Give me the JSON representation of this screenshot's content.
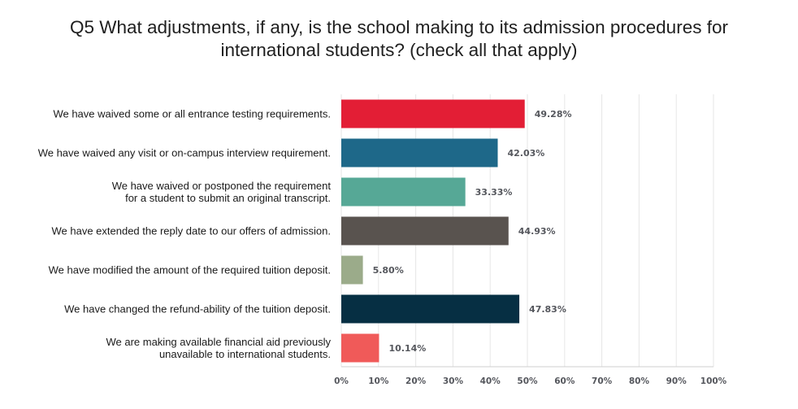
{
  "chart_data": {
    "type": "bar",
    "orientation": "horizontal",
    "title": [
      "Q5 What adjustments, if any, is the school making to its admission procedures for",
      "international students? (check all that apply)"
    ],
    "categories": [
      [
        "We have waived some or all entrance testing requirements."
      ],
      [
        "We have waived any visit or on-campus interview requirement."
      ],
      [
        "We have waived or postponed the requirement",
        "for a student to submit an original transcript."
      ],
      [
        "We have extended the reply date to our offers of admission."
      ],
      [
        "We have modified the amount of the required tuition deposit."
      ],
      [
        "We have changed the refund-ability of the tuition deposit."
      ],
      [
        "We are making available financial aid previously",
        "unavailable to international students."
      ]
    ],
    "values": [
      49.28,
      42.03,
      33.33,
      44.93,
      5.8,
      47.83,
      10.14
    ],
    "value_labels": [
      "49.28%",
      "42.03%",
      "33.33%",
      "44.93%",
      "5.80%",
      "47.83%",
      "10.14%"
    ],
    "colors": [
      "#e31e35",
      "#1e6889",
      "#56a896",
      "#59534f",
      "#9bab8a",
      "#062f43",
      "#f05a59"
    ],
    "xlim": [
      0,
      100
    ],
    "x_ticks": [
      0,
      10,
      20,
      30,
      40,
      50,
      60,
      70,
      80,
      90,
      100
    ],
    "x_tick_labels": [
      "0%",
      "10%",
      "20%",
      "30%",
      "40%",
      "50%",
      "60%",
      "70%",
      "80%",
      "90%",
      "100%"
    ],
    "grid": true,
    "legend": "none"
  }
}
